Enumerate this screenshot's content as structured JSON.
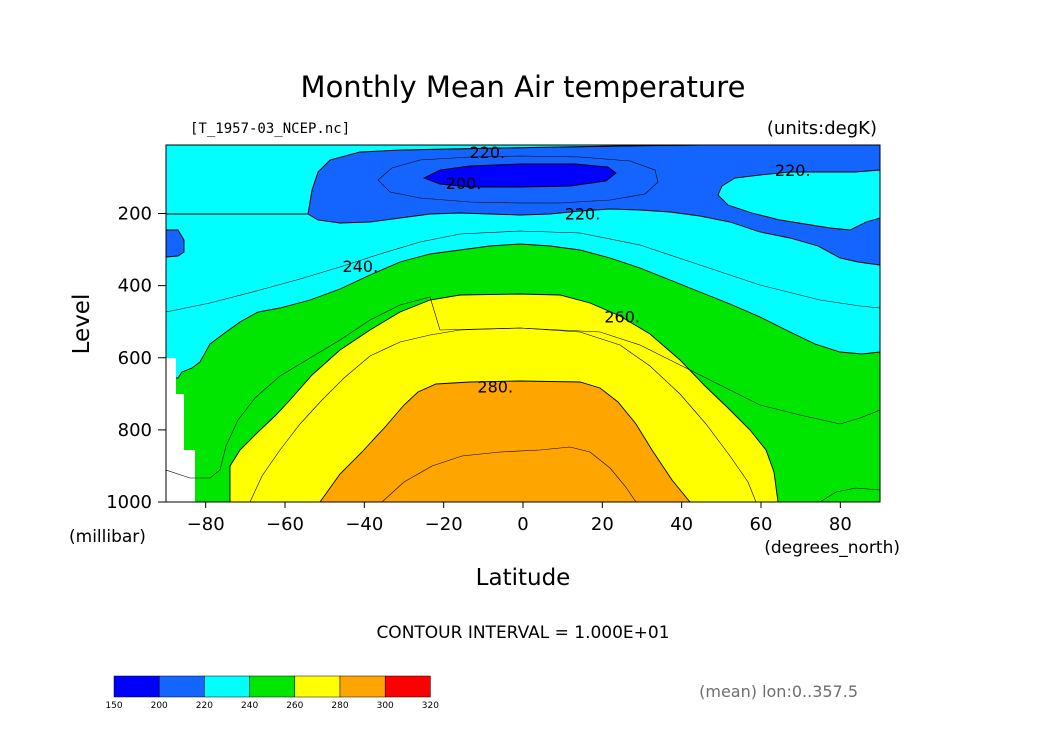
{
  "page": {
    "title": "Monthly Mean Air temperature",
    "file_label": "[T_1957-03_NCEP.nc]",
    "units_label": "(units:degK)",
    "contour_interval_label": "CONTOUR INTERVAL = 1.000E+01",
    "mean_label": "(mean) lon:0..357.5"
  },
  "chart_data": {
    "type": "contour",
    "title": "Monthly Mean Air temperature",
    "xlabel": "Latitude",
    "ylabel": "Level",
    "x_units": "(degrees_north)",
    "y_units": "(millibar)",
    "xlim": [
      -90,
      90
    ],
    "ylim": [
      1000,
      10
    ],
    "xticks": [
      "-80",
      "-60",
      "-40",
      "-20",
      "0",
      "20",
      "40",
      "60",
      "80"
    ],
    "yticks": [
      "200",
      "400",
      "600",
      "800",
      "1000"
    ],
    "contour_labels": [
      {
        "text": "220.",
        "lat": -9,
        "level": 30
      },
      {
        "text": "200.",
        "lat": -15,
        "level": 115
      },
      {
        "text": "220.",
        "lat": 15,
        "level": 200
      },
      {
        "text": "220.",
        "lat": 68,
        "level": 80
      },
      {
        "text": "240.",
        "lat": -41,
        "level": 345
      },
      {
        "text": "260.",
        "lat": 25,
        "level": 485
      },
      {
        "text": "280.",
        "lat": -7,
        "level": 680
      }
    ],
    "colorbar": {
      "ticks": [
        "150",
        "200",
        "220",
        "240",
        "260",
        "280",
        "300",
        "320"
      ],
      "colors": [
        "#0000ff",
        "#1464ff",
        "#00ffff",
        "#00e600",
        "#ffff00",
        "#ffa500",
        "#ff0000"
      ]
    },
    "grid": false
  }
}
